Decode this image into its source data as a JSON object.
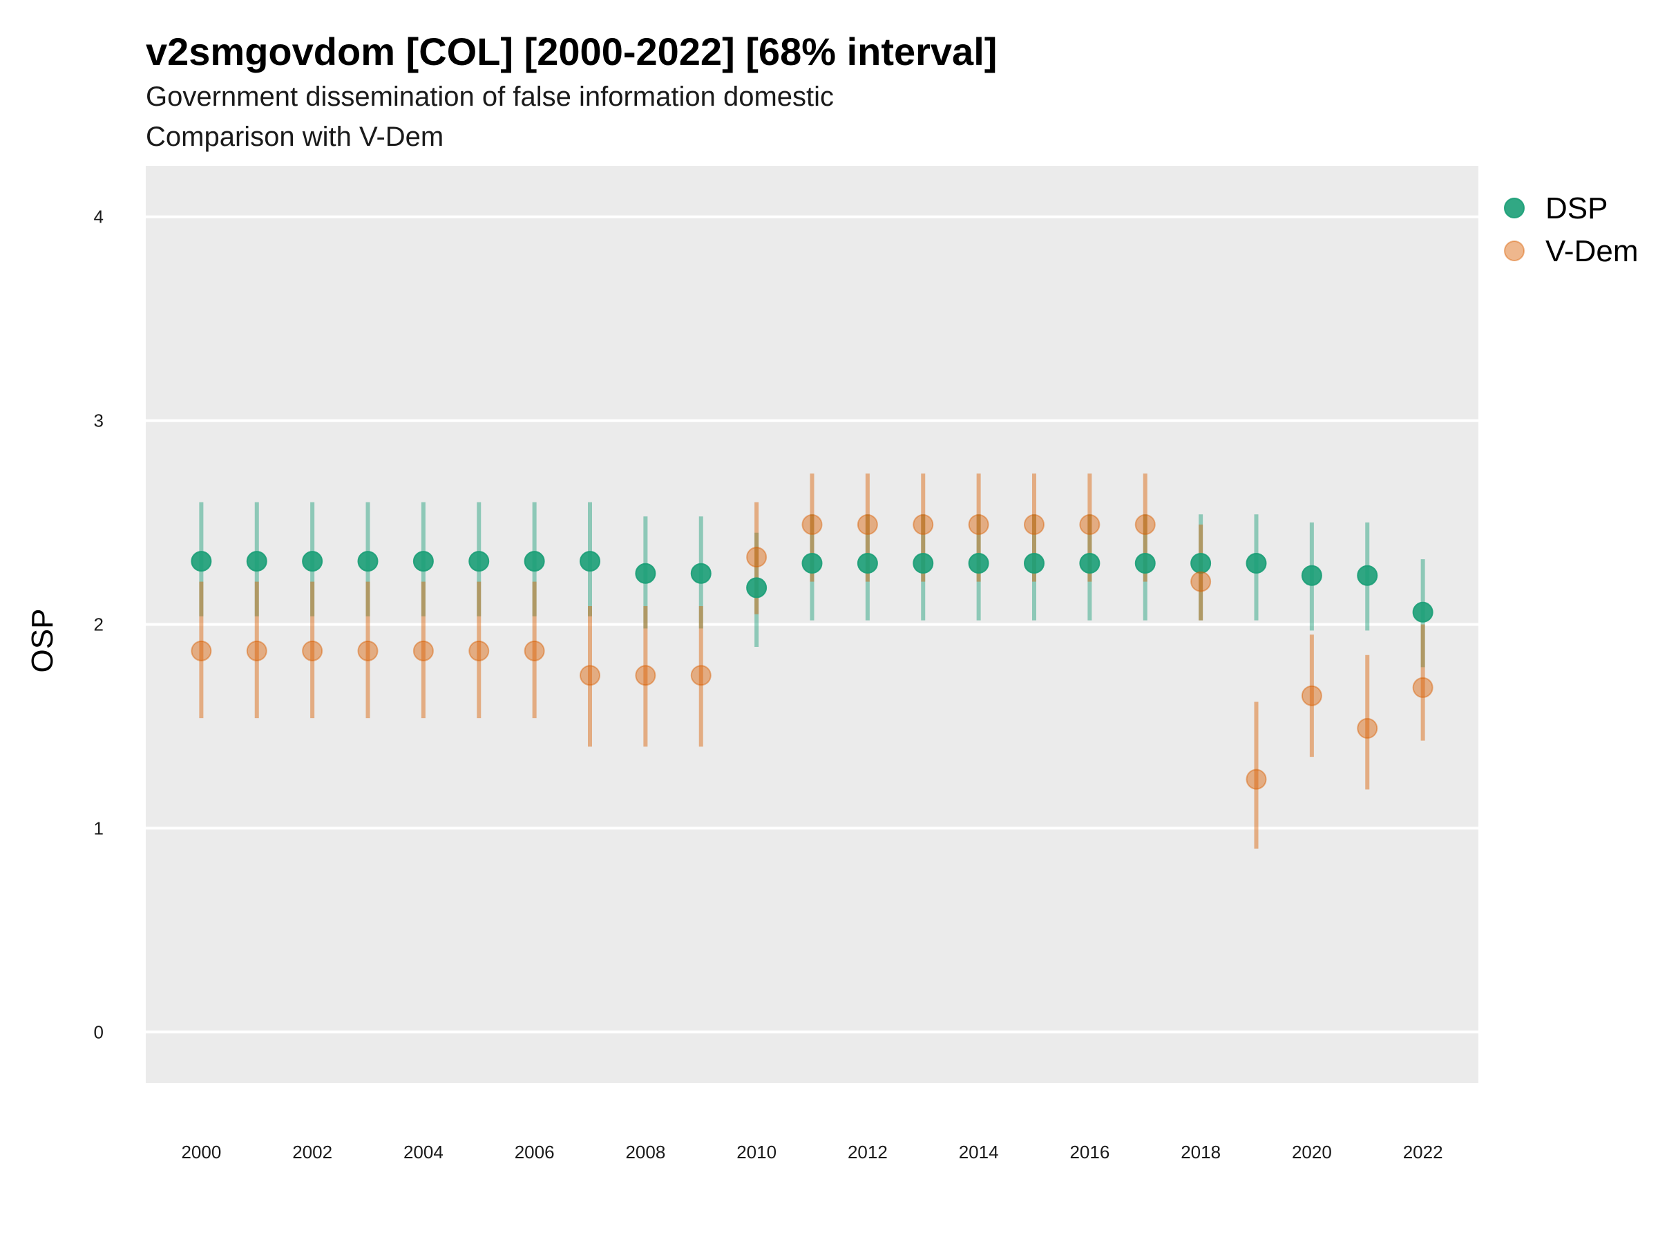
{
  "chart_data": {
    "type": "scatter",
    "title": "v2smgovdom [COL] [2000-2022] [68% interval]",
    "subtitle_lines": [
      "Government dissemination of false information domestic",
      "Comparison with V-Dem"
    ],
    "ylabel": "OSP",
    "xlabel": "",
    "ylim": [
      -0.25,
      4.25
    ],
    "xlim": [
      1999,
      2023
    ],
    "y_ticks": [
      0,
      1,
      2,
      3,
      4
    ],
    "y_tick_labels": [
      "0",
      "1",
      "2",
      "3",
      "4"
    ],
    "x_ticks": [
      2000,
      2002,
      2004,
      2006,
      2008,
      2010,
      2012,
      2014,
      2016,
      2018,
      2020,
      2022
    ],
    "x_tick_labels": [
      "2000",
      "2002",
      "2004",
      "2006",
      "2008",
      "2010",
      "2012",
      "2014",
      "2016",
      "2018",
      "2020",
      "2022"
    ],
    "grid": "horizontal major",
    "legend_position": "right",
    "x": [
      2000,
      2001,
      2002,
      2003,
      2004,
      2005,
      2006,
      2007,
      2008,
      2009,
      2010,
      2011,
      2012,
      2013,
      2014,
      2015,
      2016,
      2017,
      2018,
      2019,
      2020,
      2021,
      2022
    ],
    "series": [
      {
        "name": "DSP",
        "color": "#1b9e77",
        "values": [
          2.31,
          2.31,
          2.31,
          2.31,
          2.31,
          2.31,
          2.31,
          2.31,
          2.25,
          2.25,
          2.18,
          2.3,
          2.3,
          2.3,
          2.3,
          2.3,
          2.3,
          2.3,
          2.3,
          2.3,
          2.24,
          2.24,
          2.06
        ],
        "lower": [
          2.04,
          2.04,
          2.04,
          2.04,
          2.04,
          2.04,
          2.04,
          2.04,
          1.98,
          1.98,
          1.89,
          2.02,
          2.02,
          2.02,
          2.02,
          2.02,
          2.02,
          2.02,
          2.02,
          2.02,
          1.97,
          1.97,
          1.79
        ],
        "upper": [
          2.6,
          2.6,
          2.6,
          2.6,
          2.6,
          2.6,
          2.6,
          2.6,
          2.53,
          2.53,
          2.45,
          2.54,
          2.54,
          2.54,
          2.54,
          2.54,
          2.54,
          2.54,
          2.54,
          2.54,
          2.5,
          2.5,
          2.32
        ]
      },
      {
        "name": "V-Dem",
        "color": "#d95f02",
        "values": [
          1.87,
          1.87,
          1.87,
          1.87,
          1.87,
          1.87,
          1.87,
          1.75,
          1.75,
          1.75,
          2.33,
          2.49,
          2.49,
          2.49,
          2.49,
          2.49,
          2.49,
          2.49,
          2.21,
          1.24,
          1.65,
          1.49,
          1.69
        ],
        "lower": [
          1.54,
          1.54,
          1.54,
          1.54,
          1.54,
          1.54,
          1.54,
          1.4,
          1.4,
          1.4,
          2.05,
          2.21,
          2.21,
          2.21,
          2.21,
          2.21,
          2.21,
          2.21,
          2.02,
          0.9,
          1.35,
          1.19,
          1.43
        ],
        "upper": [
          2.21,
          2.21,
          2.21,
          2.21,
          2.21,
          2.21,
          2.21,
          2.09,
          2.09,
          2.09,
          2.6,
          2.74,
          2.74,
          2.74,
          2.74,
          2.74,
          2.74,
          2.74,
          2.49,
          1.62,
          1.95,
          1.85,
          2.0
        ]
      }
    ]
  }
}
